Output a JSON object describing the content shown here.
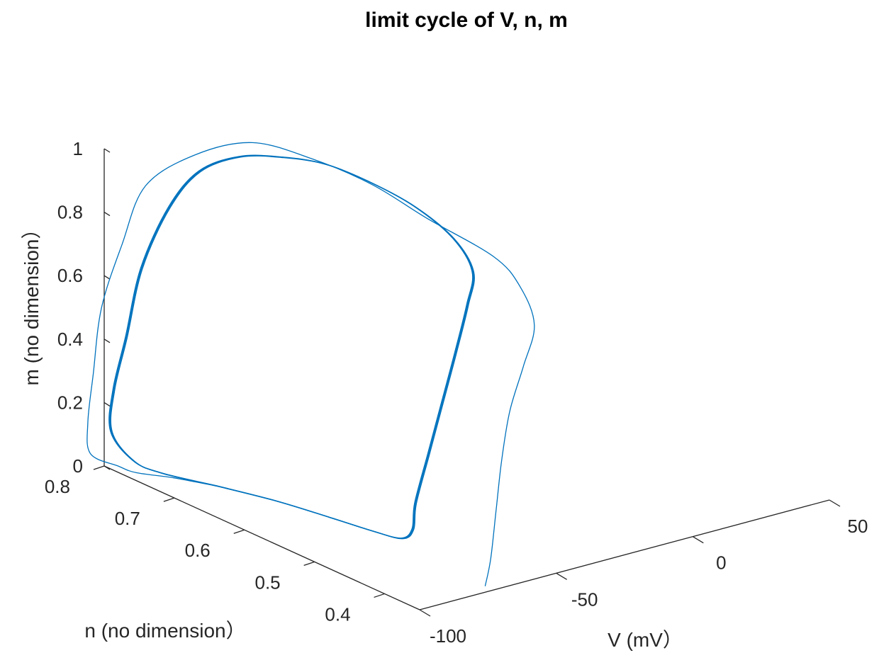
{
  "chart_data": {
    "type": "line",
    "projection": "3d",
    "title": "limit cycle of V, n, m",
    "xlabel": "V (mV）",
    "ylabel": "n (no dimension）",
    "zlabel": "m (no dimension）",
    "xlim": [
      -100,
      50
    ],
    "ylim": [
      0.35,
      0.8
    ],
    "zlim": [
      0,
      1
    ],
    "x_ticks": [
      "-100",
      "-50",
      "0",
      "50"
    ],
    "y_ticks": [
      "0.4",
      "0.5",
      "0.6",
      "0.7",
      "0.8"
    ],
    "z_ticks": [
      "0",
      "0.2",
      "0.4",
      "0.6",
      "0.8",
      "1"
    ],
    "grid": false,
    "line_color": "#0072BD",
    "series": [
      {
        "role": "transient",
        "points": [
          [
            -76,
            0.35,
            0.02
          ],
          [
            -74,
            0.35,
            0.1
          ],
          [
            -72,
            0.35,
            0.25
          ],
          [
            -70,
            0.35,
            0.4
          ],
          [
            -67,
            0.35,
            0.55
          ],
          [
            -62,
            0.35,
            0.68
          ],
          [
            -58,
            0.35,
            0.8
          ],
          [
            -58,
            0.37,
            0.9
          ],
          [
            -60,
            0.4,
            0.97
          ],
          [
            -64,
            0.48,
            1.02
          ],
          [
            -66,
            0.55,
            1.06
          ],
          [
            -70,
            0.62,
            1.08
          ],
          [
            -74,
            0.69,
            1.07
          ],
          [
            -82,
            0.74,
            1.0
          ],
          [
            -90,
            0.78,
            0.88
          ],
          [
            -96,
            0.79,
            0.7
          ],
          [
            -101,
            0.8,
            0.5
          ],
          [
            -104,
            0.8,
            0.3
          ],
          [
            -106,
            0.8,
            0.15
          ],
          [
            -105,
            0.8,
            0.05
          ],
          [
            -100,
            0.78,
            0.02
          ],
          [
            -96,
            0.77,
            0.0
          ],
          [
            -90,
            0.74,
            0.0
          ],
          [
            -84,
            0.7,
            0.0
          ]
        ]
      },
      {
        "role": "limit-cycle",
        "points": [
          [
            -84,
            0.7,
            0.0
          ],
          [
            -78,
            0.64,
            0.0
          ],
          [
            -74,
            0.58,
            0.0
          ],
          [
            -71,
            0.53,
            0.0
          ],
          [
            -68,
            0.5,
            0.0
          ],
          [
            -64,
            0.5,
            0.02
          ],
          [
            -63,
            0.5,
            0.1
          ],
          [
            -58,
            0.5,
            0.25
          ],
          [
            -53,
            0.5,
            0.4
          ],
          [
            -48,
            0.5,
            0.55
          ],
          [
            -44,
            0.5,
            0.68
          ],
          [
            -42,
            0.5,
            0.78
          ],
          [
            -44,
            0.52,
            0.87
          ],
          [
            -48,
            0.56,
            0.94
          ],
          [
            -54,
            0.6,
            0.99
          ],
          [
            -60,
            0.64,
            1.02
          ],
          [
            -68,
            0.67,
            1.03
          ],
          [
            -76,
            0.7,
            1.02
          ],
          [
            -83,
            0.73,
            0.96
          ],
          [
            -89,
            0.75,
            0.84
          ],
          [
            -94,
            0.77,
            0.64
          ],
          [
            -97,
            0.78,
            0.42
          ],
          [
            -99,
            0.79,
            0.25
          ],
          [
            -100,
            0.79,
            0.12
          ],
          [
            -97,
            0.77,
            0.04
          ],
          [
            -92,
            0.75,
            0.01
          ],
          [
            -84,
            0.7,
            0.0
          ]
        ]
      }
    ]
  }
}
